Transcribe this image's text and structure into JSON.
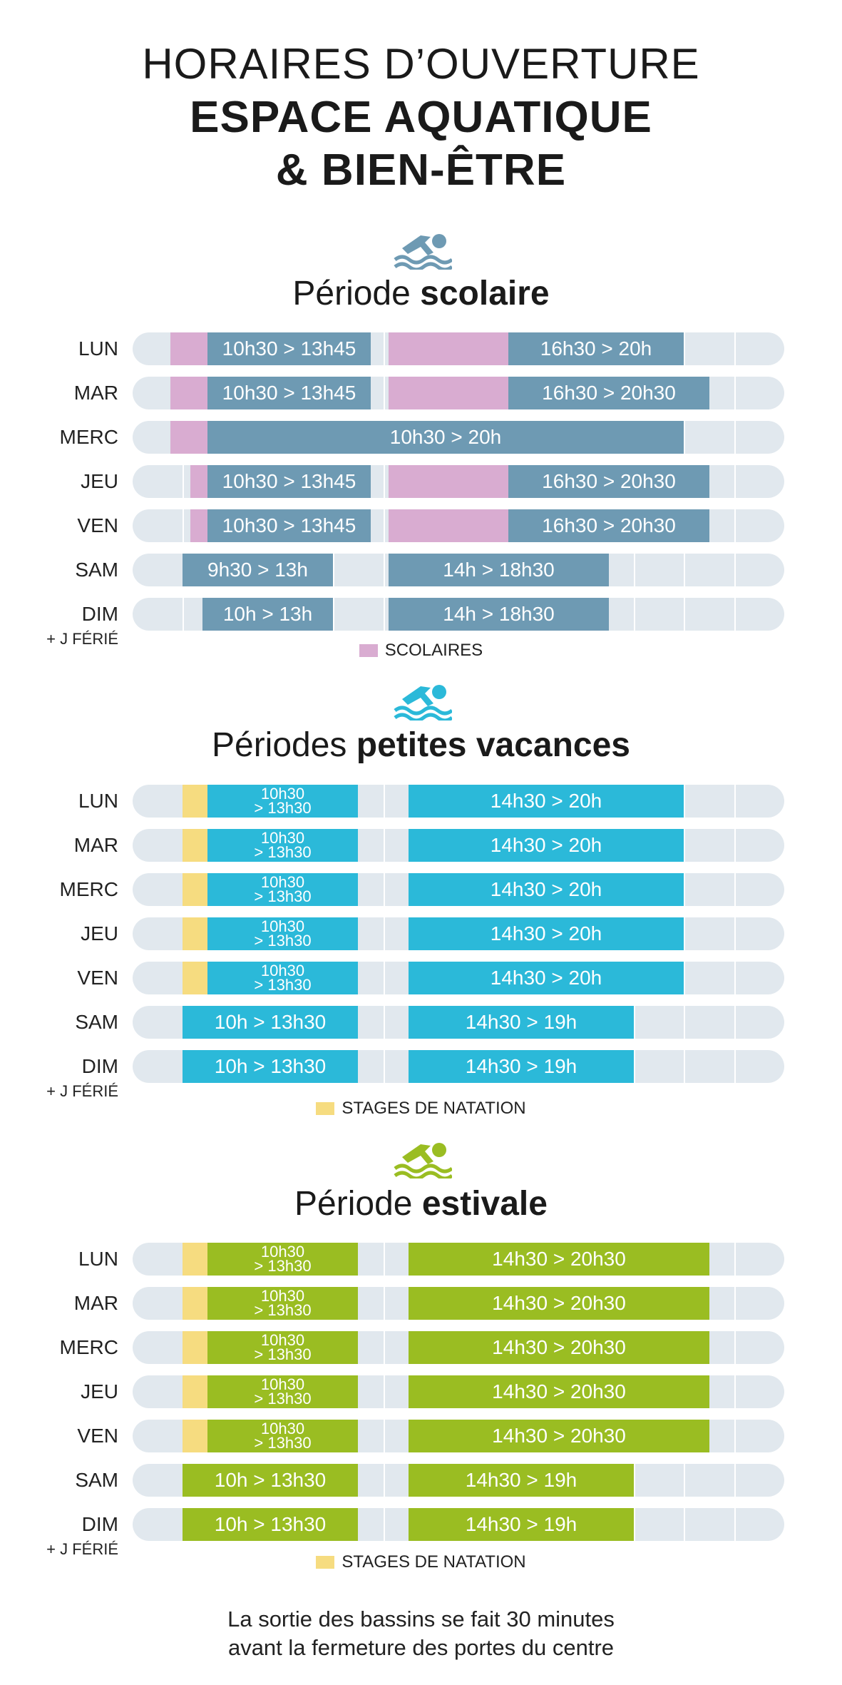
{
  "header": {
    "line1": "HORAIRES D’OUVERTURE",
    "line2": "ESPACE AQUATIQUE",
    "line3": "& BIEN-ÊTRE"
  },
  "sections": [
    {
      "title_regular": "Période ",
      "title_bold": "scolaire",
      "icon": "swimmer-icon",
      "color": "#6e9ab3",
      "rows": [
        {
          "day": "LUN",
          "h1": "10h30 > 13h45",
          "h2": "16h30 > 20h"
        },
        {
          "day": "MAR",
          "h1": "10h30 > 13h45",
          "h2": "16h30 > 20h30"
        },
        {
          "day": "MERC",
          "h1": "10h30 > 20h"
        },
        {
          "day": "JEU",
          "h1": "10h30 > 13h45",
          "h2": "16h30 > 20h30"
        },
        {
          "day": "VEN",
          "h1": "10h30 > 13h45",
          "h2": "16h30 > 20h30"
        },
        {
          "day": "SAM",
          "h1": "9h30 > 13h",
          "h2": "14h > 18h30"
        },
        {
          "day": "DIM",
          "sub": "+ J FÉRIÉ",
          "h1": "10h > 13h",
          "h2": "14h > 18h30"
        }
      ],
      "legend": "SCOLAIRES",
      "legend_color": "#d9acd1"
    },
    {
      "title_regular": "Périodes ",
      "title_bold": "petites vacances",
      "icon": "swimmer-icon",
      "color": "#2bb9d9",
      "rows": [
        {
          "day": "LUN",
          "h1a": "10h30",
          "h1b": "> 13h30",
          "h2": "14h30 > 20h"
        },
        {
          "day": "MAR",
          "h1a": "10h30",
          "h1b": "> 13h30",
          "h2": "14h30 > 20h"
        },
        {
          "day": "MERC",
          "h1a": "10h30",
          "h1b": "> 13h30",
          "h2": "14h30 > 20h"
        },
        {
          "day": "JEU",
          "h1a": "10h30",
          "h1b": "> 13h30",
          "h2": "14h30 > 20h"
        },
        {
          "day": "VEN",
          "h1a": "10h30",
          "h1b": "> 13h30",
          "h2": "14h30 > 20h"
        },
        {
          "day": "SAM",
          "h1": "10h > 13h30",
          "h2": "14h30 > 19h"
        },
        {
          "day": "DIM",
          "sub": "+ J FÉRIÉ",
          "h1": "10h > 13h30",
          "h2": "14h30 > 19h"
        }
      ],
      "legend": "STAGES DE NATATION",
      "legend_color": "#f6dc80"
    },
    {
      "title_regular": "Période ",
      "title_bold": "estivale",
      "icon": "swimmer-icon",
      "color": "#9abd22",
      "rows": [
        {
          "day": "LUN",
          "h1a": "10h30",
          "h1b": "> 13h30",
          "h2": "14h30 > 20h30"
        },
        {
          "day": "MAR",
          "h1a": "10h30",
          "h1b": "> 13h30",
          "h2": "14h30 > 20h30"
        },
        {
          "day": "MERC",
          "h1a": "10h30",
          "h1b": "> 13h30",
          "h2": "14h30 > 20h30"
        },
        {
          "day": "JEU",
          "h1a": "10h30",
          "h1b": "> 13h30",
          "h2": "14h30 > 20h30"
        },
        {
          "day": "VEN",
          "h1a": "10h30",
          "h1b": "> 13h30",
          "h2": "14h30 > 20h30"
        },
        {
          "day": "SAM",
          "h1": "10h > 13h30",
          "h2": "14h30 > 19h"
        },
        {
          "day": "DIM",
          "sub": "+ J FÉRIÉ",
          "h1": "10h > 13h30",
          "h2": "14h30 > 19h"
        }
      ],
      "legend": "STAGES DE NATATION",
      "legend_color": "#f6dc80"
    }
  ],
  "footer": {
    "line1": "La sortie des bassins se fait 30 minutes",
    "line2": "avant la fermeture des portes du centre"
  }
}
